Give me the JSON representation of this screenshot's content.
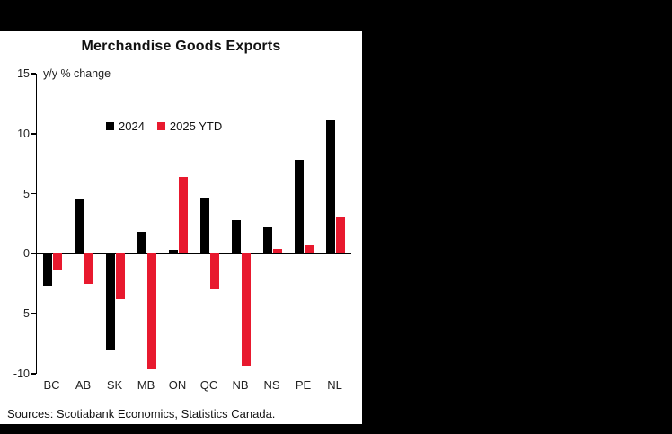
{
  "page": {
    "background_color": "#000000",
    "panel_color": "#ffffff"
  },
  "chart_data": {
    "type": "bar",
    "title": "Merchandise Goods Exports",
    "units_label": "y/y % change",
    "categories": [
      "BC",
      "AB",
      "SK",
      "MB",
      "ON",
      "QC",
      "NB",
      "NS",
      "PE",
      "NL"
    ],
    "series": [
      {
        "name": "2024",
        "color": "#000000",
        "values": [
          -2.7,
          4.5,
          -8.0,
          1.8,
          0.3,
          4.7,
          2.8,
          2.2,
          7.8,
          11.2
        ]
      },
      {
        "name": "2025 YTD",
        "color": "#E8192E",
        "values": [
          -1.3,
          -2.5,
          -3.8,
          -9.6,
          6.4,
          -3.0,
          -9.3,
          0.4,
          0.7,
          3.0
        ]
      }
    ],
    "ylim": [
      -10,
      15
    ],
    "yticks": [
      15,
      10,
      5,
      0,
      -5,
      -10
    ],
    "grid": false,
    "legend_position": "top-inside",
    "source": "Sources: Scotiabank Economics, Statistics Canada."
  }
}
